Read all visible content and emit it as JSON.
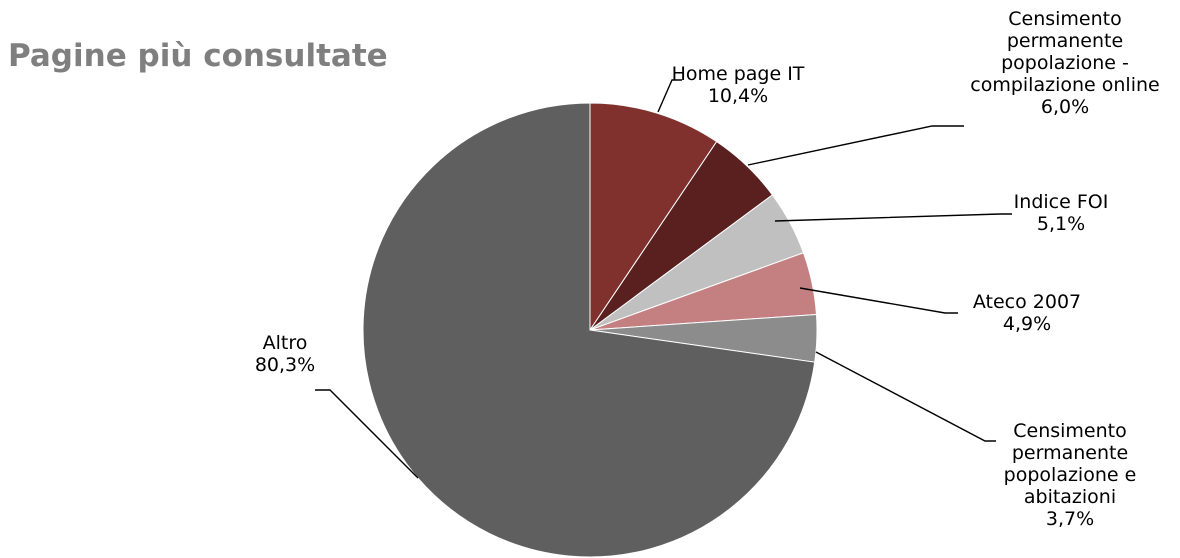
{
  "chart_data": {
    "type": "pie",
    "title": "Pagine più consultate",
    "slices": [
      {
        "label_lines": [
          "Home page IT"
        ],
        "value_text": "10,4%",
        "value": 10.4,
        "color": "#80302d"
      },
      {
        "label_lines": [
          "Censimento",
          "permanente",
          "popolazione -",
          "compilazione online"
        ],
        "value_text": "6,0%",
        "value": 6.0,
        "color": "#5a1f1f"
      },
      {
        "label_lines": [
          "Indice FOI"
        ],
        "value_text": "5,1%",
        "value": 5.1,
        "color": "#c0c0c0"
      },
      {
        "label_lines": [
          "Ateco 2007"
        ],
        "value_text": "4,9%",
        "value": 4.9,
        "color": "#c48080"
      },
      {
        "label_lines": [
          "Censimento",
          "permanente",
          "popolazione e",
          "abitazioni"
        ],
        "value_text": "3,7%",
        "value": 3.7,
        "color": "#8c8c8c"
      },
      {
        "label_lines": [
          "Altro"
        ],
        "value_text": "80,3%",
        "value": 80.3,
        "color": "#5f5f5f"
      }
    ]
  }
}
